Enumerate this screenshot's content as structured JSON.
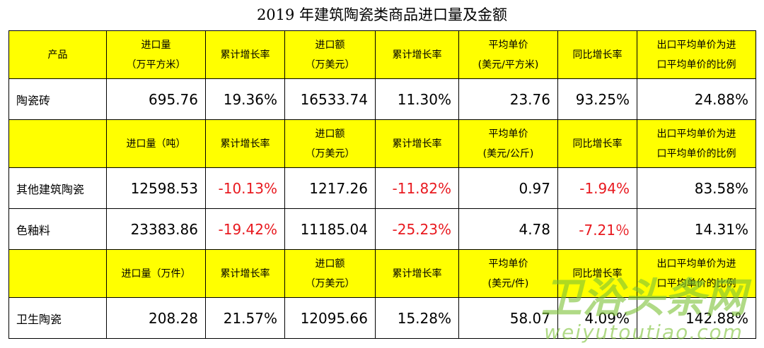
{
  "title": "2019 年建筑陶瓷类商品进口量及金额",
  "colors": {
    "header_bg": "#ffff00",
    "negative": "#e8191f",
    "watermark": "#7cc236"
  },
  "sections": [
    {
      "headers": [
        "产品",
        "进口量\n（万平方米）",
        "累计增长率",
        "进口额\n（万美元）",
        "累计增长率",
        "平均单价\n(美元/平方米)",
        "同比增长率",
        "出口平均单价为进\n口平均单价的比例"
      ],
      "rows": [
        {
          "name": "陶瓷砖",
          "values": [
            "695.76",
            "19.36%",
            "16533.74",
            "11.30%",
            "23.76",
            "93.25%",
            "24.88%"
          ]
        }
      ]
    },
    {
      "headers": [
        "",
        "进口量（吨）",
        "累计增长率",
        "进口额\n（万美元）",
        "累计增长率",
        "平均单价\n(美元/公斤)",
        "同比增长率",
        "出口平均单价为进\n口平均单价的比例"
      ],
      "rows": [
        {
          "name": "其他建筑陶瓷",
          "values": [
            "12598.53",
            "-10.13%",
            "1217.26",
            "-11.82%",
            "0.97",
            "-1.94%",
            "83.58%"
          ]
        },
        {
          "name": "色釉料",
          "values": [
            "23383.86",
            "-19.42%",
            "11185.04",
            "-25.23%",
            "4.78",
            "-7.21％",
            "14.31%"
          ]
        }
      ]
    },
    {
      "headers": [
        "",
        "进口量（万件）",
        "累计增长率",
        "进口额\n（万美元）",
        "累计增长率",
        "平均单价\n(美元/件)",
        "同比增长率",
        "出口平均单价为进\n口平均单价的比例"
      ],
      "rows": [
        {
          "name": "卫生陶瓷",
          "values": [
            "208.28",
            "21.57%",
            "12095.66",
            "15.28%",
            "58.07",
            "4.09%",
            "142.88%"
          ]
        }
      ]
    }
  ],
  "watermark": {
    "cn": "卫浴头条网",
    "en": "weiyutoutiao.com"
  }
}
